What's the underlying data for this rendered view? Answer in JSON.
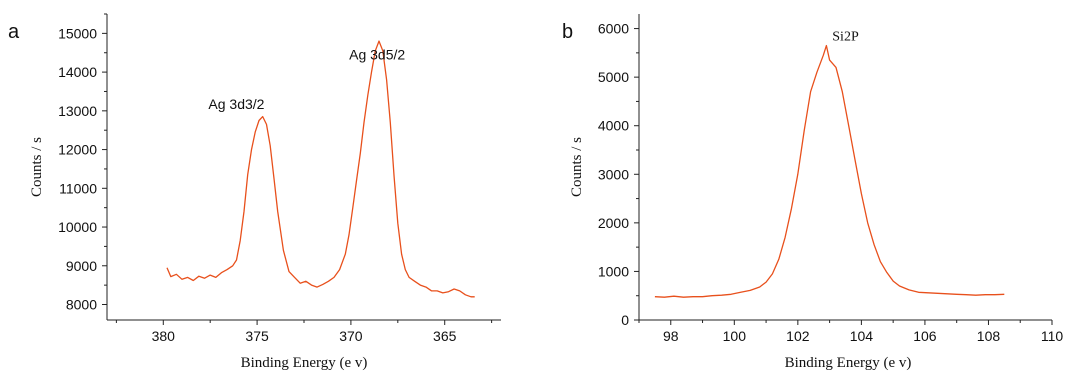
{
  "chart_data": [
    {
      "panel_label": "a",
      "type": "line",
      "xlabel": "Binding Energy (e v)",
      "ylabel": "Counts / s",
      "xlim": [
        383,
        362
      ],
      "ylim": [
        7600,
        15500
      ],
      "x_ticks": [
        380,
        375,
        370,
        365
      ],
      "y_ticks": [
        8000,
        9000,
        10000,
        11000,
        12000,
        13000,
        14000,
        15000
      ],
      "x_reversed": true,
      "grid": false,
      "line_color": "#e8501c",
      "annotations": [
        {
          "text": "Ag 3d3/2",
          "x": 376.1,
          "y": 13050
        },
        {
          "text": "Ag 3d5/2",
          "x": 368.6,
          "y": 14330
        }
      ],
      "series": [
        {
          "x": [
            379.8,
            379.6,
            379.3,
            379.0,
            378.7,
            378.4,
            378.1,
            377.8,
            377.5,
            377.2,
            376.9,
            376.6,
            376.3,
            376.1,
            375.9,
            375.7,
            375.5,
            375.3,
            375.1,
            374.9,
            374.7,
            374.5,
            374.3,
            374.1,
            373.9,
            373.6,
            373.3,
            373.0,
            372.7,
            372.4,
            372.1,
            371.8,
            371.5,
            371.2,
            370.9,
            370.6,
            370.3,
            370.1,
            369.9,
            369.7,
            369.5,
            369.3,
            369.1,
            368.9,
            368.7,
            368.5,
            368.3,
            368.1,
            367.9,
            367.7,
            367.5,
            367.3,
            367.1,
            366.9,
            366.6,
            366.3,
            366.0,
            365.7,
            365.4,
            365.1,
            364.8,
            364.5,
            364.2,
            363.9,
            363.6,
            363.4
          ],
          "y": [
            8950,
            8720,
            8780,
            8650,
            8700,
            8620,
            8730,
            8680,
            8760,
            8700,
            8820,
            8900,
            9000,
            9150,
            9650,
            10400,
            11350,
            12000,
            12450,
            12750,
            12850,
            12650,
            12100,
            11250,
            10400,
            9400,
            8850,
            8700,
            8550,
            8600,
            8500,
            8450,
            8520,
            8600,
            8700,
            8900,
            9300,
            9800,
            10500,
            11200,
            11900,
            12700,
            13400,
            14000,
            14550,
            14800,
            14550,
            13800,
            12700,
            11300,
            10100,
            9300,
            8900,
            8700,
            8600,
            8500,
            8450,
            8350,
            8350,
            8300,
            8330,
            8400,
            8350,
            8250,
            8200,
            8200
          ]
        }
      ]
    },
    {
      "panel_label": "b",
      "type": "line",
      "xlabel": "Binding Energy (e v)",
      "ylabel": "Counts / s",
      "xlim": [
        97,
        110
      ],
      "ylim": [
        0,
        6300
      ],
      "x_ticks": [
        98,
        100,
        102,
        104,
        106,
        108,
        110
      ],
      "y_ticks": [
        0,
        1000,
        2000,
        3000,
        4000,
        5000,
        6000
      ],
      "x_reversed": false,
      "grid": false,
      "line_color": "#e8501c",
      "annotations": [
        {
          "text": "Si2P",
          "x": 103.5,
          "y": 5750
        }
      ],
      "series": [
        {
          "x": [
            97.5,
            97.8,
            98.1,
            98.4,
            98.7,
            99.0,
            99.3,
            99.6,
            99.9,
            100.2,
            100.5,
            100.8,
            101.0,
            101.2,
            101.4,
            101.6,
            101.8,
            102.0,
            102.2,
            102.4,
            102.6,
            102.8,
            102.9,
            103.0,
            103.2,
            103.4,
            103.6,
            103.8,
            104.0,
            104.2,
            104.4,
            104.6,
            104.8,
            105.0,
            105.2,
            105.5,
            105.8,
            106.1,
            106.4,
            106.7,
            107.0,
            107.3,
            107.6,
            107.9,
            108.2,
            108.5
          ],
          "y": [
            480,
            470,
            490,
            470,
            480,
            480,
            500,
            510,
            530,
            570,
            610,
            680,
            780,
            950,
            1250,
            1700,
            2300,
            3000,
            3900,
            4700,
            5100,
            5450,
            5650,
            5350,
            5200,
            4700,
            4000,
            3300,
            2600,
            2000,
            1550,
            1200,
            980,
            800,
            700,
            620,
            570,
            560,
            550,
            540,
            530,
            520,
            510,
            520,
            520,
            530
          ]
        }
      ]
    }
  ]
}
